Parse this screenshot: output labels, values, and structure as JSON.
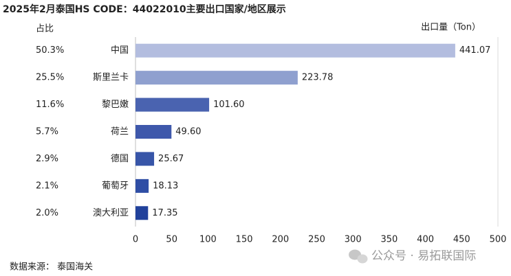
{
  "chart_data": {
    "type": "bar",
    "orientation": "horizontal",
    "title": "2025年2月泰国HS CODE：44022010主要出口国家/地区展示",
    "share_header": "占比",
    "x_label": "出口量（Ton）",
    "categories": [
      "中国",
      "斯里兰卡",
      "黎巴嫩",
      "荷兰",
      "德国",
      "葡萄牙",
      "澳大利亚"
    ],
    "shares": [
      "50.3%",
      "25.5%",
      "11.6%",
      "5.7%",
      "2.9%",
      "2.1%",
      "2.0%"
    ],
    "values": [
      441.07,
      223.78,
      101.6,
      49.6,
      25.67,
      18.13,
      17.35
    ],
    "value_labels": [
      "441.07",
      "223.78",
      "101.60",
      "49.60",
      "25.67",
      "18.13",
      "17.35"
    ],
    "colors": [
      "#b3bddf",
      "#8fa0cf",
      "#4a63b0",
      "#3e58ab",
      "#3755a8",
      "#2f4ea5",
      "#21419b"
    ],
    "xlim": [
      0,
      500
    ],
    "xticks": [
      0,
      50,
      100,
      150,
      200,
      250,
      300,
      350,
      400,
      450,
      500
    ],
    "grid": false,
    "source": "数据来源： 泰国海关",
    "watermark": "公众号 · 易拓联国际"
  }
}
